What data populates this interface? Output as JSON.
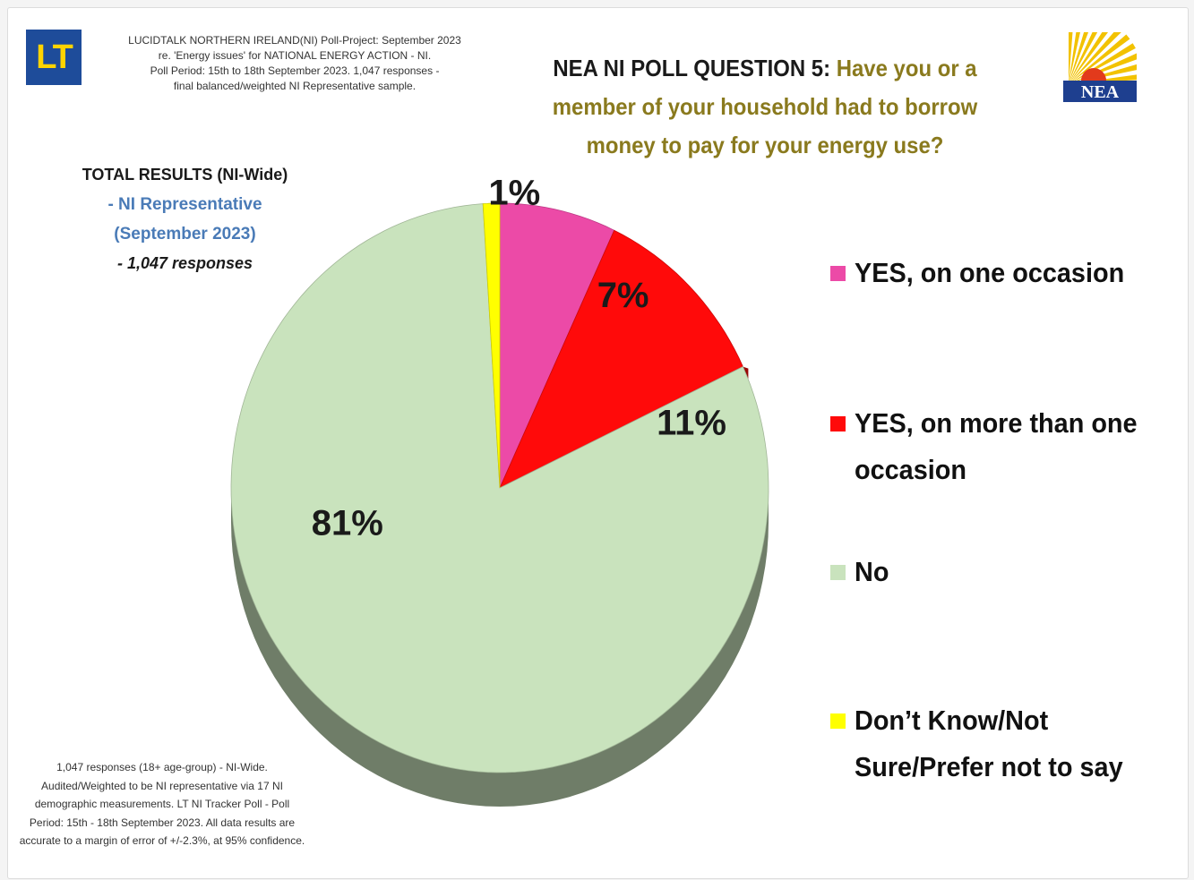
{
  "brand": {
    "lt_logo_text": "LT",
    "nea_logo_text": "NEA"
  },
  "poll_info": {
    "line1": "LUCIDTALK NORTHERN IRELAND(NI) Poll-Project: September 2023",
    "line2": "re. 'Energy issues' for NATIONAL ENERGY ACTION - NI.",
    "line3": "Poll Period: 15th to 18th September 2023. 1,047 responses -",
    "line4": "final balanced/weighted NI Representative sample."
  },
  "question": {
    "number": "NEA NI POLL QUESTION 5:",
    "text": "Have you or a member of your household had to borrow money to pay for your energy use?"
  },
  "total_results": {
    "line1": "TOTAL RESULTS (NI-Wide)",
    "line2": "- NI Representative",
    "line3": "(September 2023)",
    "line4": "- 1,047 responses"
  },
  "footnote": "1,047 responses (18+ age-group) - NI-Wide. Audited/Weighted to be NI representative via 17 NI demographic measurements. LT NI Tracker Poll - Poll Period: 15th - 18th September 2023. All data results are accurate to a margin of error of +/-2.3%, at 95% confidence.",
  "colors": {
    "question_text": "#8a7a1e",
    "subtitle_blue": "#4a7bb7",
    "lt_logo_bg": "#1e4c9a",
    "lt_logo_fg": "#ffd400",
    "nea_blue": "#1e3f8f",
    "nea_yellow": "#f2c200"
  },
  "chart_data": {
    "type": "pie",
    "title": "",
    "slices": [
      {
        "label": "YES, on one occasion",
        "value": 7,
        "display": "7%",
        "color": "#ec4aa7"
      },
      {
        "label": "YES, on more than one occasion",
        "value": 11,
        "display": "11%",
        "color": "#ff0a0a"
      },
      {
        "label": "No",
        "value": 81,
        "display": "81%",
        "color": "#c9e3bd"
      },
      {
        "label": "Don't Know/Not Sure/Prefer not to say",
        "value": 1,
        "display": "1%",
        "color": "#ffff00"
      }
    ],
    "legend": [
      {
        "label_line1": "YES, on one occasion",
        "label_line2": "",
        "color": "#ec4aa7"
      },
      {
        "label_line1": "YES, on more than one",
        "label_line2": "occasion",
        "color": "#ff0a0a"
      },
      {
        "label_line1": "No",
        "label_line2": "",
        "color": "#c9e3bd"
      },
      {
        "label_line1": "Don’t Know/Not",
        "label_line2": "Sure/Prefer not to say",
        "color": "#ffff00"
      }
    ],
    "legend_position": "right",
    "style": "3d"
  }
}
